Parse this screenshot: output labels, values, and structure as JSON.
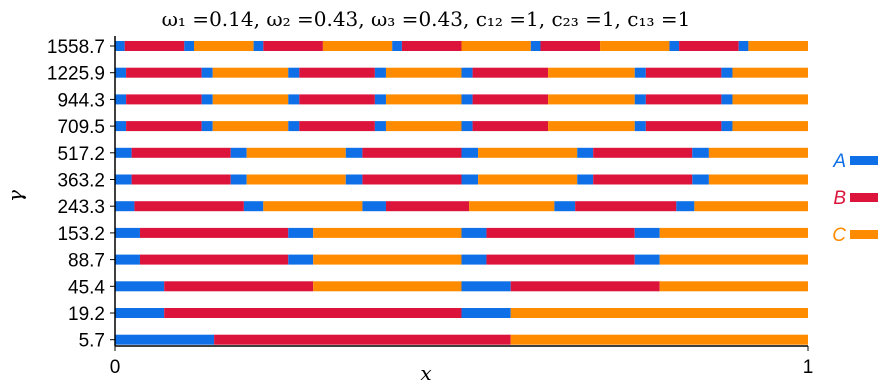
{
  "chart_data": {
    "type": "bar",
    "title": "ω₁ =0.14, ω₂ =0.43, ω₃ =0.43, c₁₂ =1, c₂₃ =1, c₁₃ =1",
    "xlabel": "x",
    "ylabel": "γ",
    "xlim": [
      0,
      1
    ],
    "x_ticks": [
      "0",
      "1"
    ],
    "legend_position": "right",
    "colors": {
      "A": "#0f6fe6",
      "B": "#dc143c",
      "C": "#ff8c00"
    },
    "series": [
      {
        "name": "A",
        "color": "#0f6fe6"
      },
      {
        "name": "B",
        "color": "#dc143c"
      },
      {
        "name": "C",
        "color": "#ff8c00"
      }
    ],
    "rows": [
      {
        "gamma": "1558.7",
        "segments": [
          [
            "A",
            0,
            0.014
          ],
          [
            "B",
            0.014,
            0.1
          ],
          [
            "A",
            0.1,
            0.114
          ],
          [
            "C",
            0.114,
            0.2
          ],
          [
            "A",
            0.2,
            0.214
          ],
          [
            "B",
            0.214,
            0.3
          ],
          [
            "C",
            0.3,
            0.4
          ],
          [
            "A",
            0.4,
            0.414
          ],
          [
            "B",
            0.414,
            0.5
          ],
          [
            "C",
            0.5,
            0.6
          ],
          [
            "A",
            0.6,
            0.614
          ],
          [
            "B",
            0.614,
            0.7
          ],
          [
            "C",
            0.7,
            0.8
          ],
          [
            "A",
            0.8,
            0.814
          ],
          [
            "B",
            0.814,
            0.9
          ],
          [
            "A",
            0.9,
            0.914
          ],
          [
            "C",
            0.914,
            1.0
          ]
        ]
      },
      {
        "gamma": "1225.9",
        "segments": [
          [
            "A",
            0,
            0.016
          ],
          [
            "B",
            0.016,
            0.125
          ],
          [
            "A",
            0.125,
            0.141
          ],
          [
            "C",
            0.141,
            0.25
          ],
          [
            "A",
            0.25,
            0.266
          ],
          [
            "B",
            0.266,
            0.375
          ],
          [
            "A",
            0.375,
            0.391
          ],
          [
            "C",
            0.391,
            0.5
          ],
          [
            "A",
            0.5,
            0.516
          ],
          [
            "B",
            0.516,
            0.625
          ],
          [
            "C",
            0.625,
            0.75
          ],
          [
            "A",
            0.75,
            0.766
          ],
          [
            "B",
            0.766,
            0.875
          ],
          [
            "A",
            0.875,
            0.891
          ],
          [
            "C",
            0.891,
            1.0
          ]
        ]
      },
      {
        "gamma": "944.3",
        "segments": [
          [
            "A",
            0,
            0.016
          ],
          [
            "B",
            0.016,
            0.125
          ],
          [
            "A",
            0.125,
            0.141
          ],
          [
            "C",
            0.141,
            0.25
          ],
          [
            "A",
            0.25,
            0.266
          ],
          [
            "B",
            0.266,
            0.375
          ],
          [
            "A",
            0.375,
            0.391
          ],
          [
            "C",
            0.391,
            0.5
          ],
          [
            "A",
            0.5,
            0.516
          ],
          [
            "B",
            0.516,
            0.625
          ],
          [
            "C",
            0.625,
            0.75
          ],
          [
            "A",
            0.75,
            0.766
          ],
          [
            "B",
            0.766,
            0.875
          ],
          [
            "A",
            0.875,
            0.891
          ],
          [
            "C",
            0.891,
            1.0
          ]
        ]
      },
      {
        "gamma": "709.5",
        "segments": [
          [
            "A",
            0,
            0.016
          ],
          [
            "B",
            0.016,
            0.125
          ],
          [
            "A",
            0.125,
            0.141
          ],
          [
            "C",
            0.141,
            0.25
          ],
          [
            "A",
            0.25,
            0.266
          ],
          [
            "B",
            0.266,
            0.375
          ],
          [
            "A",
            0.375,
            0.391
          ],
          [
            "C",
            0.391,
            0.5
          ],
          [
            "A",
            0.5,
            0.516
          ],
          [
            "B",
            0.516,
            0.625
          ],
          [
            "C",
            0.625,
            0.75
          ],
          [
            "A",
            0.75,
            0.766
          ],
          [
            "B",
            0.766,
            0.875
          ],
          [
            "A",
            0.875,
            0.891
          ],
          [
            "C",
            0.891,
            1.0
          ]
        ]
      },
      {
        "gamma": "517.2",
        "segments": [
          [
            "A",
            0,
            0.024
          ],
          [
            "B",
            0.024,
            0.167
          ],
          [
            "A",
            0.167,
            0.19
          ],
          [
            "C",
            0.19,
            0.333
          ],
          [
            "A",
            0.333,
            0.357
          ],
          [
            "B",
            0.357,
            0.5
          ],
          [
            "A",
            0.5,
            0.524
          ],
          [
            "C",
            0.524,
            0.667
          ],
          [
            "A",
            0.667,
            0.69
          ],
          [
            "B",
            0.69,
            0.833
          ],
          [
            "A",
            0.833,
            0.857
          ],
          [
            "C",
            0.857,
            1.0
          ]
        ]
      },
      {
        "gamma": "363.2",
        "segments": [
          [
            "A",
            0,
            0.024
          ],
          [
            "B",
            0.024,
            0.167
          ],
          [
            "A",
            0.167,
            0.19
          ],
          [
            "C",
            0.19,
            0.333
          ],
          [
            "A",
            0.333,
            0.357
          ],
          [
            "B",
            0.357,
            0.5
          ],
          [
            "A",
            0.5,
            0.524
          ],
          [
            "C",
            0.524,
            0.667
          ],
          [
            "A",
            0.667,
            0.69
          ],
          [
            "B",
            0.69,
            0.833
          ],
          [
            "A",
            0.833,
            0.857
          ],
          [
            "C",
            0.857,
            1.0
          ]
        ]
      },
      {
        "gamma": "243.3",
        "segments": [
          [
            "A",
            0,
            0.028
          ],
          [
            "B",
            0.028,
            0.186
          ],
          [
            "A",
            0.186,
            0.214
          ],
          [
            "C",
            0.214,
            0.357
          ],
          [
            "A",
            0.357,
            0.391
          ],
          [
            "B",
            0.391,
            0.511
          ],
          [
            "C",
            0.511,
            0.634
          ],
          [
            "A",
            0.634,
            0.664
          ],
          [
            "B",
            0.664,
            0.81
          ],
          [
            "A",
            0.81,
            0.836
          ],
          [
            "C",
            0.836,
            1.0
          ]
        ]
      },
      {
        "gamma": "153.2",
        "segments": [
          [
            "A",
            0,
            0.036
          ],
          [
            "B",
            0.036,
            0.25
          ],
          [
            "A",
            0.25,
            0.286
          ],
          [
            "C",
            0.286,
            0.5
          ],
          [
            "A",
            0.5,
            0.536
          ],
          [
            "B",
            0.536,
            0.75
          ],
          [
            "A",
            0.75,
            0.786
          ],
          [
            "C",
            0.786,
            1.0
          ]
        ]
      },
      {
        "gamma": "88.7",
        "segments": [
          [
            "A",
            0,
            0.036
          ],
          [
            "B",
            0.036,
            0.25
          ],
          [
            "A",
            0.25,
            0.286
          ],
          [
            "C",
            0.286,
            0.5
          ],
          [
            "A",
            0.5,
            0.536
          ],
          [
            "B",
            0.536,
            0.75
          ],
          [
            "A",
            0.75,
            0.786
          ],
          [
            "C",
            0.786,
            1.0
          ]
        ]
      },
      {
        "gamma": "45.4",
        "segments": [
          [
            "A",
            0,
            0.071
          ],
          [
            "B",
            0.071,
            0.286
          ],
          [
            "C",
            0.286,
            0.5
          ],
          [
            "A",
            0.5,
            0.571
          ],
          [
            "B",
            0.571,
            0.786
          ],
          [
            "C",
            0.786,
            1.0
          ]
        ]
      },
      {
        "gamma": "19.2",
        "segments": [
          [
            "A",
            0,
            0.071
          ],
          [
            "B",
            0.071,
            0.5
          ],
          [
            "A",
            0.5,
            0.571
          ],
          [
            "C",
            0.571,
            1.0
          ]
        ]
      },
      {
        "gamma": "5.7",
        "segments": [
          [
            "A",
            0,
            0.143
          ],
          [
            "B",
            0.143,
            0.571
          ],
          [
            "C",
            0.571,
            1.0
          ]
        ]
      }
    ]
  }
}
